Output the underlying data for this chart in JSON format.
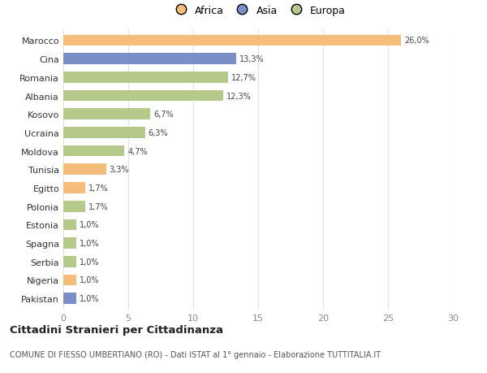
{
  "countries": [
    "Marocco",
    "Cina",
    "Romania",
    "Albania",
    "Kosovo",
    "Ucraina",
    "Moldova",
    "Tunisia",
    "Egitto",
    "Polonia",
    "Estonia",
    "Spagna",
    "Serbia",
    "Nigeria",
    "Pakistan"
  ],
  "values": [
    26.0,
    13.3,
    12.7,
    12.3,
    6.7,
    6.3,
    4.7,
    3.3,
    1.7,
    1.7,
    1.0,
    1.0,
    1.0,
    1.0,
    1.0
  ],
  "labels": [
    "26,0%",
    "13,3%",
    "12,7%",
    "12,3%",
    "6,7%",
    "6,3%",
    "4,7%",
    "3,3%",
    "1,7%",
    "1,7%",
    "1,0%",
    "1,0%",
    "1,0%",
    "1,0%",
    "1,0%"
  ],
  "colors": [
    "#f5bc7a",
    "#7b8fc7",
    "#b5c98a",
    "#b5c98a",
    "#b5c98a",
    "#b5c98a",
    "#b5c98a",
    "#f5bc7a",
    "#f5bc7a",
    "#b5c98a",
    "#b5c98a",
    "#b5c98a",
    "#b5c98a",
    "#f5bc7a",
    "#7b8fc7"
  ],
  "continents": [
    "Africa",
    "Asia",
    "Europa"
  ],
  "legend_colors": [
    "#f5bc7a",
    "#7b8fc7",
    "#b5c98a"
  ],
  "title": "Cittadini Stranieri per Cittadinanza",
  "subtitle": "COMUNE DI FIESSO UMBERTIANO (RO) - Dati ISTAT al 1° gennaio - Elaborazione TUTTITALIA.IT",
  "xlim": [
    0,
    30
  ],
  "xticks": [
    0,
    5,
    10,
    15,
    20,
    25,
    30
  ],
  "background_color": "#ffffff",
  "grid_color": "#e0e0e0"
}
